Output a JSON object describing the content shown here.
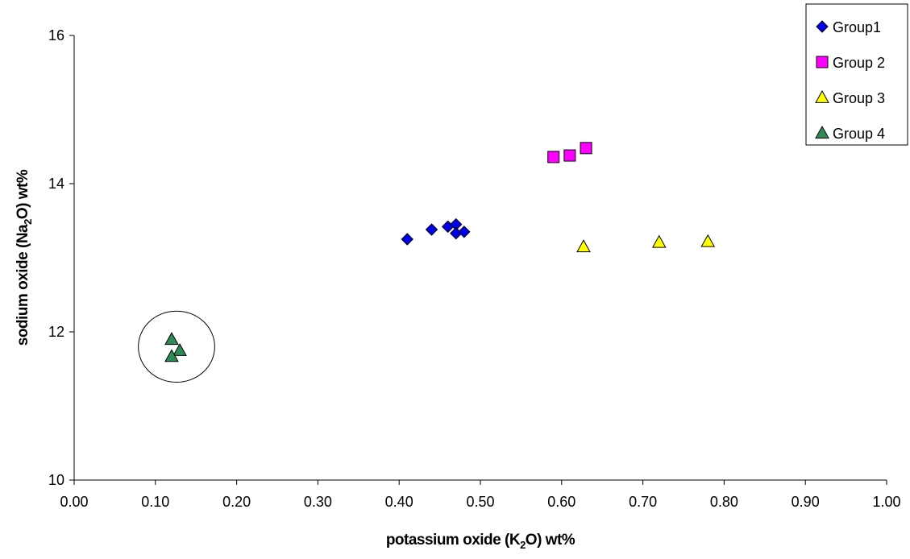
{
  "chart_data": {
    "type": "scatter",
    "title": "",
    "xlabel_parts": [
      "potassium oxide (K",
      "2",
      "O) wt%"
    ],
    "ylabel_parts": [
      "sodium oxide (Na",
      "2",
      "O) wt%"
    ],
    "xlim": [
      0,
      1
    ],
    "ylim": [
      10,
      16
    ],
    "x_ticks": [
      0,
      0.1,
      0.2,
      0.3,
      0.4,
      0.5,
      0.6,
      0.7,
      0.8,
      0.9,
      1.0
    ],
    "x_tick_labels": [
      "0.00",
      "0.10",
      "0.20",
      "0.30",
      "0.40",
      "0.50",
      "0.60",
      "0.70",
      "0.80",
      "0.90",
      "1.00"
    ],
    "y_ticks": [
      10,
      12,
      14,
      16
    ],
    "y_tick_labels": [
      "10",
      "12",
      "14",
      "16"
    ],
    "grid": false,
    "legend_position": "top-right",
    "series": [
      {
        "name": "Group1",
        "marker": "diamond",
        "color": "#0000ee",
        "points": [
          {
            "x": 0.41,
            "y": 13.25
          },
          {
            "x": 0.44,
            "y": 13.38
          },
          {
            "x": 0.46,
            "y": 13.42
          },
          {
            "x": 0.47,
            "y": 13.45
          },
          {
            "x": 0.47,
            "y": 13.33
          },
          {
            "x": 0.48,
            "y": 13.35
          }
        ]
      },
      {
        "name": "Group 2",
        "marker": "square",
        "color": "#ff00ff",
        "points": [
          {
            "x": 0.59,
            "y": 14.36
          },
          {
            "x": 0.61,
            "y": 14.38
          },
          {
            "x": 0.63,
            "y": 14.48
          }
        ]
      },
      {
        "name": "Group 3",
        "marker": "triangle",
        "color": "#ffff00",
        "points": [
          {
            "x": 0.627,
            "y": 13.15
          },
          {
            "x": 0.72,
            "y": 13.21
          },
          {
            "x": 0.78,
            "y": 13.22
          }
        ]
      },
      {
        "name": "Group 4",
        "marker": "triangle",
        "color": "#2e8b57",
        "points": [
          {
            "x": 0.12,
            "y": 11.9
          },
          {
            "x": 0.13,
            "y": 11.75
          },
          {
            "x": 0.12,
            "y": 11.67
          }
        ]
      }
    ],
    "annotations": [
      {
        "type": "circle",
        "cx": 0.126,
        "cy": 11.8,
        "rx": 0.047,
        "ry": 0.48
      }
    ]
  }
}
